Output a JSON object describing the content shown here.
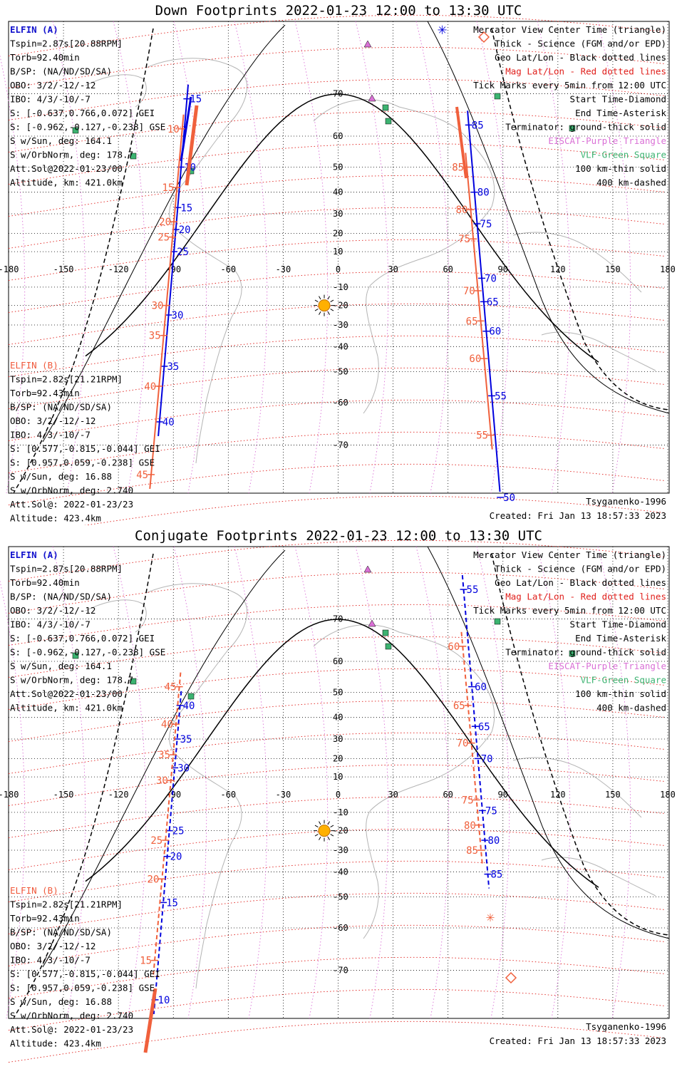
{
  "panels": [
    {
      "title": "Down Footprints 2022-01-23 12:00 to 13:30 UTC",
      "elfin_a": {
        "name": "ELFIN (A)",
        "lines": [
          "Tspin=2.87s[20.88RPM]",
          "Torb=92.40min",
          "B/SP: (NA/ND/SD/SA)",
          "OBO: 3/2/-12/-12",
          "IBO: 4/3/-10/-7",
          "S: [-0.637,0.766,0.072] GEI",
          "S: [-0.962,-0.127,-0.238] GSE",
          "S w/Sun, deg: 164.1",
          "S w/OrbNorm, deg: 178.7",
          "Att.Sol@2022-01-23/00",
          "Altitude, km: 421.0km"
        ]
      },
      "elfin_b": {
        "name": "ELFIN (B)",
        "lines": [
          "Tspin=2.82s[21.21RPM]",
          "Torb=92.43min",
          "B/SP: (NA/ND/SD/SA)",
          "OBO: 3/2/-12/-12",
          "IBO: 4/3/-10/-7",
          "S: [0.577,-0.815,-0.044] GEI",
          "S: [0.957,0.059,-0.238] GSE",
          "S w/Sun, deg: 16.88",
          "S w/OrbNorm, deg: 2.740",
          "Att.Sol@: 2022-01-23/23",
          "Altitude: 423.4km"
        ]
      },
      "legend": [
        {
          "text": "Mercator View Center Time (triangle)",
          "color": "#000000"
        },
        {
          "text": "Thick - Science (FGM and/or EPD)",
          "color": "#000000"
        },
        {
          "text": "Geo Lat/Lon - Black dotted lines",
          "color": "#000000"
        },
        {
          "text": "Mag Lat/Lon - Red dotted lines",
          "color": "#e0201c"
        },
        {
          "text": "Tick Marks every 5min from 12:00 UTC",
          "color": "#000000"
        },
        {
          "text": "Start Time-Diamond",
          "color": "#000000"
        },
        {
          "text": "End Time-Asterisk",
          "color": "#000000"
        },
        {
          "text": "Terminator: ground-thick solid",
          "color": "#000000"
        },
        {
          "text": "EISCAT-Purple Triangle",
          "color": "#da70d6"
        },
        {
          "text": "VLF-Green Square",
          "color": "#3cb371"
        },
        {
          "text": "100 km-thin solid",
          "color": "#000000"
        },
        {
          "text": "400 km-dashed",
          "color": "#000000"
        }
      ],
      "model": "Tsyganenko-1996",
      "created": "Created: Fri Jan 13 18:57:33 2023",
      "blue_ticks": [
        {
          "label": "15",
          "lat": 69
        },
        {
          "label": "10",
          "lat": 50
        },
        {
          "label": "15",
          "lat": 33
        },
        {
          "label": "20",
          "lat": 22
        },
        {
          "label": "25",
          "lat": 10
        },
        {
          "label": "30",
          "lat": -25
        },
        {
          "label": "35",
          "lat": -48
        },
        {
          "label": "40",
          "lat": -65
        }
      ],
      "orange_ticks": [
        {
          "label": "10",
          "lat": 62
        },
        {
          "label": "15",
          "lat": 42
        },
        {
          "label": "20",
          "lat": 26
        },
        {
          "label": "25",
          "lat": 18
        },
        {
          "label": "30",
          "lat": -20
        },
        {
          "label": "35",
          "lat": -35
        },
        {
          "label": "40",
          "lat": -55
        },
        {
          "label": "45",
          "lat": -75
        }
      ],
      "blue_ticks_right": [
        {
          "label": "85",
          "lat": 63
        },
        {
          "label": "80",
          "lat": 40
        },
        {
          "label": "75",
          "lat": 25
        },
        {
          "label": "70",
          "lat": -5
        },
        {
          "label": "65",
          "lat": -18
        },
        {
          "label": "60",
          "lat": -33
        },
        {
          "label": "55",
          "lat": -58
        },
        {
          "label": "50",
          "lat": -78
        }
      ],
      "orange_ticks_right": [
        {
          "label": "85",
          "lat": 50
        },
        {
          "label": "80",
          "lat": 32
        },
        {
          "label": "75",
          "lat": 17
        },
        {
          "label": "70",
          "lat": -12
        },
        {
          "label": "65",
          "lat": -28
        },
        {
          "label": "60",
          "lat": -45
        },
        {
          "label": "55",
          "lat": -68
        }
      ]
    },
    {
      "title": "Conjugate Footprints 2022-01-23 12:00 to 13:30 UTC",
      "model": "Tsyganenko-1996",
      "created": "Created: Fri Jan 13 18:57:33 2023",
      "blue_ticks": [
        {
          "label": "40",
          "lat": 45
        },
        {
          "label": "35",
          "lat": 30
        },
        {
          "label": "30",
          "lat": 15
        },
        {
          "label": "25",
          "lat": -20
        },
        {
          "label": "20",
          "lat": -33
        },
        {
          "label": "15",
          "lat": -52
        },
        {
          "label": "10",
          "lat": -75
        }
      ],
      "orange_ticks": [
        {
          "label": "45",
          "lat": 52
        },
        {
          "label": "40",
          "lat": 37
        },
        {
          "label": "35",
          "lat": 22
        },
        {
          "label": "30",
          "lat": 8
        },
        {
          "label": "25",
          "lat": -25
        },
        {
          "label": "20",
          "lat": -43
        },
        {
          "label": "15",
          "lat": -68
        }
      ],
      "blue_ticks_right": [
        {
          "label": "55",
          "lat": 75
        },
        {
          "label": "60",
          "lat": 52
        },
        {
          "label": "65",
          "lat": 36
        },
        {
          "label": "70",
          "lat": 20
        },
        {
          "label": "75",
          "lat": -9
        },
        {
          "label": "80",
          "lat": -25
        },
        {
          "label": "85",
          "lat": -41
        }
      ],
      "orange_ticks_right": [
        {
          "label": "60",
          "lat": 64
        },
        {
          "label": "65",
          "lat": 45
        },
        {
          "label": "70",
          "lat": 28
        },
        {
          "label": "75",
          "lat": -3
        },
        {
          "label": "80",
          "lat": -17
        },
        {
          "label": "85",
          "lat": -30
        }
      ]
    }
  ],
  "axes": {
    "lon_ticks": [
      "-180",
      "-150",
      "-120",
      "-90",
      "-60",
      "-30",
      "0",
      "30",
      "60",
      "90",
      "120",
      "150",
      "180"
    ],
    "lat_ticks": [
      "70",
      "60",
      "50",
      "40",
      "30",
      "20",
      "10",
      "-10",
      "-20",
      "-30",
      "-40",
      "-50",
      "-60",
      "-70"
    ]
  },
  "colors": {
    "elfin_a": "#0000dd",
    "elfin_b": "#f0603c",
    "mag_grid": "#e0201c",
    "eiscat": "#da70d6",
    "vlf": "#3cb371",
    "sun": "#ffb000"
  }
}
